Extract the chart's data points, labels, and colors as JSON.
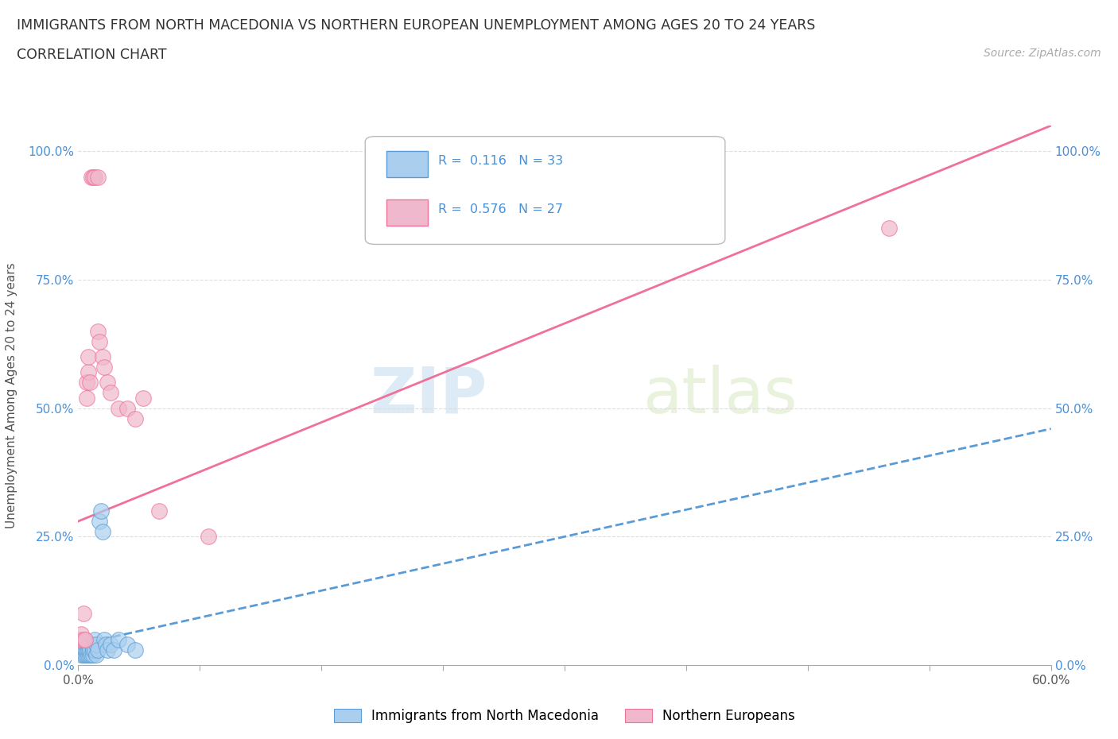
{
  "title": "IMMIGRANTS FROM NORTH MACEDONIA VS NORTHERN EUROPEAN UNEMPLOYMENT AMONG AGES 20 TO 24 YEARS",
  "subtitle": "CORRELATION CHART",
  "source": "Source: ZipAtlas.com",
  "ylabel": "Unemployment Among Ages 20 to 24 years",
  "watermark_zip": "ZIP",
  "watermark_atlas": "atlas",
  "legend_blue_R": "0.116",
  "legend_blue_N": "33",
  "legend_pink_R": "0.576",
  "legend_pink_N": "27",
  "blue_color": "#aacfee",
  "pink_color": "#f0b8cc",
  "blue_line_color": "#5b9bd5",
  "pink_line_color": "#f07098",
  "axis_label_color": "#4a90d9",
  "xmin": 0.0,
  "xmax": 0.6,
  "ymin": 0.0,
  "ymax": 1.05,
  "xtick_vals": [
    0.0,
    0.075,
    0.15,
    0.225,
    0.3,
    0.375,
    0.45,
    0.525,
    0.6
  ],
  "xtick_label_left": "0.0%",
  "xtick_label_right": "60.0%",
  "ytick_labels": [
    "0.0%",
    "25.0%",
    "50.0%",
    "75.0%",
    "100.0%"
  ],
  "ytick_vals": [
    0.0,
    0.25,
    0.5,
    0.75,
    1.0
  ],
  "blue_scatter_x": [
    0.002,
    0.003,
    0.003,
    0.004,
    0.004,
    0.005,
    0.005,
    0.005,
    0.006,
    0.006,
    0.006,
    0.007,
    0.007,
    0.008,
    0.008,
    0.009,
    0.009,
    0.01,
    0.01,
    0.011,
    0.011,
    0.012,
    0.013,
    0.014,
    0.015,
    0.016,
    0.017,
    0.018,
    0.02,
    0.022,
    0.025,
    0.03,
    0.035
  ],
  "blue_scatter_y": [
    0.02,
    0.03,
    0.02,
    0.02,
    0.03,
    0.02,
    0.03,
    0.04,
    0.02,
    0.03,
    0.04,
    0.02,
    0.03,
    0.02,
    0.04,
    0.02,
    0.03,
    0.03,
    0.05,
    0.02,
    0.04,
    0.03,
    0.28,
    0.3,
    0.26,
    0.05,
    0.04,
    0.03,
    0.04,
    0.03,
    0.05,
    0.04,
    0.03
  ],
  "pink_scatter_x": [
    0.001,
    0.002,
    0.003,
    0.003,
    0.004,
    0.005,
    0.005,
    0.006,
    0.006,
    0.007,
    0.008,
    0.009,
    0.01,
    0.012,
    0.012,
    0.013,
    0.015,
    0.016,
    0.018,
    0.02,
    0.025,
    0.03,
    0.035,
    0.04,
    0.05,
    0.08,
    0.5
  ],
  "pink_scatter_y": [
    0.05,
    0.06,
    0.05,
    0.1,
    0.05,
    0.52,
    0.55,
    0.57,
    0.6,
    0.55,
    0.95,
    0.95,
    0.95,
    0.95,
    0.65,
    0.63,
    0.6,
    0.58,
    0.55,
    0.53,
    0.5,
    0.5,
    0.48,
    0.52,
    0.3,
    0.25,
    0.85
  ],
  "blue_trend_x0": 0.0,
  "blue_trend_x1": 0.6,
  "blue_trend_y0": 0.04,
  "blue_trend_y1": 0.46,
  "pink_trend_x0": 0.0,
  "pink_trend_x1": 0.6,
  "pink_trend_y0": 0.28,
  "pink_trend_y1": 1.05,
  "legend_label_blue": "Immigrants from North Macedonia",
  "legend_label_pink": "Northern Europeans",
  "background_color": "#ffffff",
  "grid_color": "#dddddd"
}
